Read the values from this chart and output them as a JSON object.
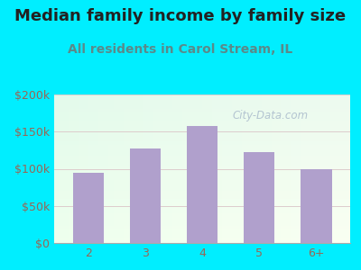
{
  "title": "Median family income by family size",
  "subtitle": "All residents in Carol Stream, IL",
  "categories": [
    "2",
    "3",
    "4",
    "5",
    "6+"
  ],
  "values": [
    95000,
    127000,
    158000,
    122000,
    100000
  ],
  "bar_color": "#b0a0cc",
  "title_fontsize": 13,
  "subtitle_fontsize": 10,
  "title_color": "#222222",
  "subtitle_color": "#5a8a8a",
  "background_outer": "#00eeff",
  "tick_label_color": "#996655",
  "ylim": [
    0,
    200000
  ],
  "yticks": [
    0,
    50000,
    100000,
    150000,
    200000
  ],
  "ytick_labels": [
    "$0",
    "$50k",
    "$100k",
    "$150k",
    "$200k"
  ],
  "watermark": "City-Data.com",
  "watermark_color": "#aabbcc",
  "grid_color": "#ddcccc"
}
